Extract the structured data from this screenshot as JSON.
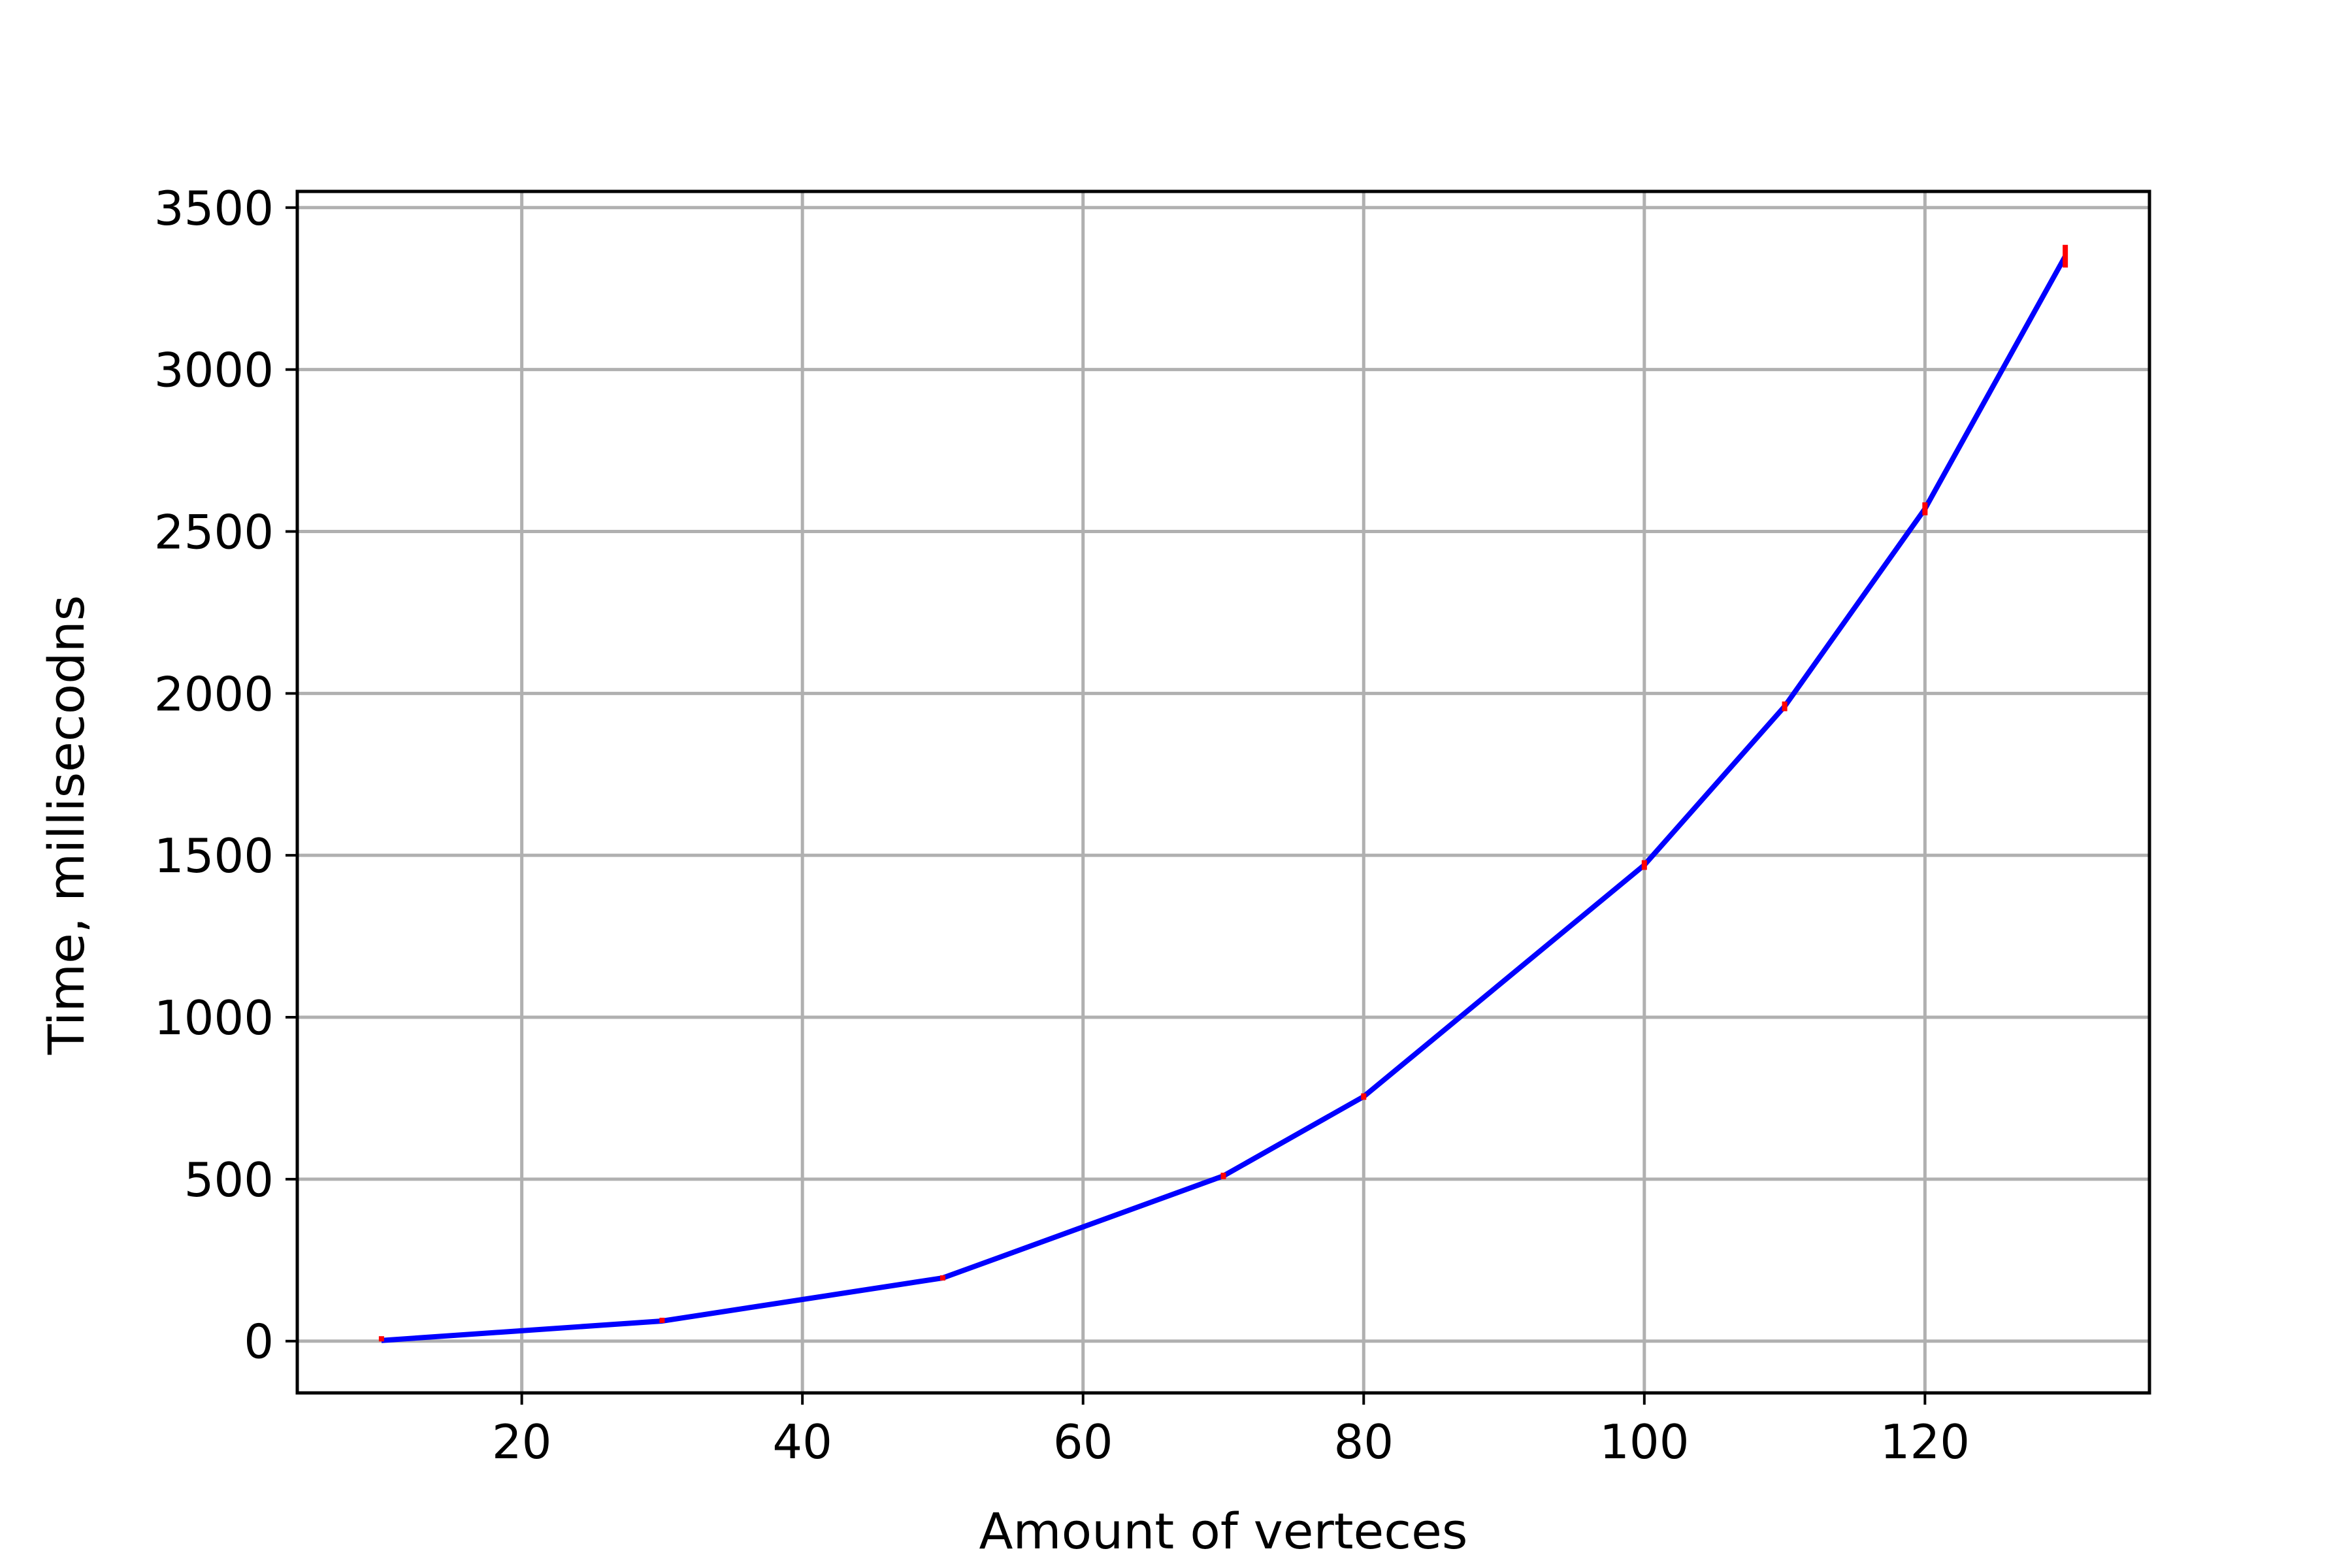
{
  "chart_data": {
    "type": "line",
    "title": "",
    "xlabel": "Amount of verteces",
    "ylabel": "Time, millisecodns",
    "xlim": [
      4,
      136
    ],
    "ylim": [
      -160,
      3550
    ],
    "xticks": [
      20,
      40,
      60,
      80,
      100,
      110,
      120
    ],
    "xtick_labels": [
      "20",
      "40",
      "60",
      "80",
      "100",
      "",
      "120"
    ],
    "xtick_display": [
      20,
      40,
      60,
      80,
      100,
      120
    ],
    "xgrid": [
      20,
      40,
      60,
      80,
      100,
      120
    ],
    "yticks": [
      0,
      500,
      1000,
      1500,
      2000,
      2500,
      3000,
      3500
    ],
    "ytick_labels": [
      "0",
      "500",
      "1000",
      "1500",
      "2000",
      "2500",
      "3000",
      "3500"
    ],
    "grid": true,
    "series": [
      {
        "x": [
          10,
          30,
          50,
          70,
          80,
          100,
          110,
          120,
          130
        ],
        "y": [
          2,
          62,
          195,
          510,
          755,
          1470,
          1960,
          2570,
          3350
        ],
        "yerr": [
          3,
          6,
          8,
          10,
          10,
          15,
          15,
          20,
          35
        ],
        "color": "#0000ff",
        "errorbar_color": "#ff0000"
      }
    ]
  }
}
